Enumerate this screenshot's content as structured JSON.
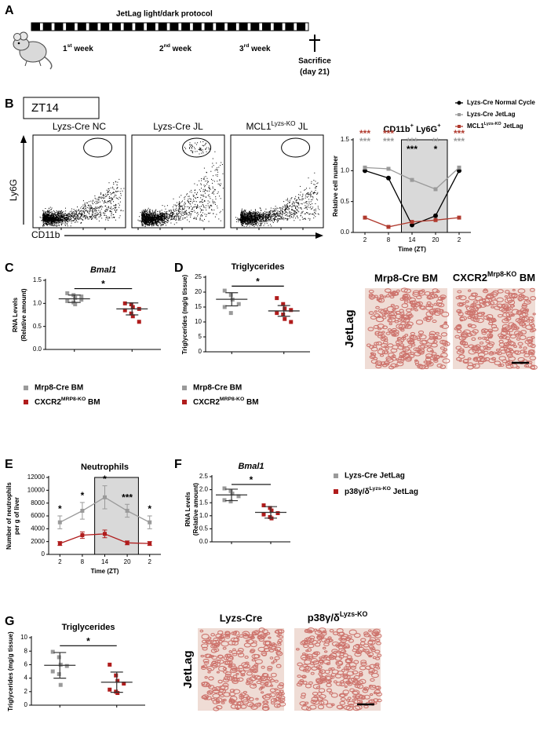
{
  "panel_labels": [
    "A",
    "B",
    "C",
    "D",
    "E",
    "F",
    "G"
  ],
  "protocol": {
    "title": "JetLag light/dark protocol",
    "weeks": [
      [
        "1",
        "st",
        " week"
      ],
      [
        "2",
        "nd",
        " week"
      ],
      [
        "3",
        "rd",
        " week"
      ]
    ],
    "endpoint": [
      "Sacrifice",
      "(day 21)"
    ]
  },
  "flow": {
    "timepoint": "ZT14",
    "plots": [
      "Lyzs-Cre NC",
      "Lyzs-Cre JL",
      [
        "MCL1",
        "Lyzs-KO",
        " JL"
      ]
    ],
    "y_axis": "Ly6G",
    "x_axis": "CD11b"
  },
  "histology_d": {
    "columns": [
      "Mrp8-Cre BM",
      [
        "CXCR2",
        "Mrp8-KO",
        " BM"
      ]
    ],
    "row": "JetLag"
  },
  "histology_g": {
    "columns": [
      "Lyzs-Cre",
      [
        "p38γ/δ",
        "Lyzs-KO"
      ]
    ],
    "row": "JetLag"
  },
  "chart_data": [
    {
      "type": "line",
      "title": [
        "CD11b",
        "+",
        " Ly6G",
        "+"
      ],
      "x_label": "Time (ZT)",
      "y_label": [
        "Relative cell number"
      ],
      "categories": [
        "2",
        "8",
        "14",
        "20",
        "2"
      ],
      "ylim": [
        0,
        1.5
      ],
      "yticks": [
        {
          "value": 0,
          "label": "0.0"
        },
        {
          "value": 0.5,
          "label": "0.5"
        },
        {
          "value": 1,
          "label": "1.0"
        },
        {
          "value": 1.5,
          "label": "1.5"
        }
      ],
      "series": [
        {
          "name": "Lyzs-Cre Normal Cycle",
          "color": "#000000",
          "marker": "circle",
          "values": [
            1.0,
            0.88,
            0.12,
            0.27,
            1.0
          ],
          "significance": [
            null,
            null,
            "***",
            "*",
            null
          ]
        },
        {
          "name": "Lyzs-Cre JetLag",
          "color": "#9a9a9a",
          "marker": "square",
          "values": [
            1.05,
            1.03,
            0.85,
            0.7,
            1.05
          ],
          "significance": [
            "***",
            "***",
            "***",
            "**",
            "***"
          ]
        },
        {
          "name": [
            "MCL1",
            "Lyzs-KO",
            " JetLag"
          ],
          "color": "#b03a2e",
          "marker": "square",
          "values": [
            0.24,
            0.09,
            0.17,
            0.2,
            0.24
          ],
          "significance": [
            "***",
            "***",
            null,
            null,
            "***"
          ]
        }
      ]
    },
    {
      "type": "dotplot",
      "title": "Bmal1",
      "italic_title": true,
      "y_label": [
        "RNA Levels",
        "(Relative amount)"
      ],
      "ylim": [
        0,
        1.5
      ],
      "yticks": [
        {
          "value": 0,
          "label": "0.0"
        },
        {
          "value": 0.5,
          "label": "0.5"
        },
        {
          "value": 1,
          "label": "1.0"
        },
        {
          "value": 1.5,
          "label": "1.5"
        }
      ],
      "significance": "*",
      "series": [
        {
          "name": "Mrp8-Cre BM",
          "color": "#9a9a9a",
          "values": [
            1.22,
            1.18,
            1.12,
            1.08,
            1.05,
            1.02,
            0.98,
            1.15
          ],
          "mean": 1.1,
          "sd": 0.08
        },
        {
          "name": [
            "CXCR2",
            "MRP8-KO",
            " BM"
          ],
          "color": "#b01c1c",
          "values": [
            1.0,
            0.98,
            0.92,
            0.88,
            0.85,
            0.78,
            0.72,
            0.6
          ],
          "mean": 0.88,
          "sd": 0.13
        }
      ]
    },
    {
      "type": "dotplot",
      "title": "Triglycerides",
      "y_label": [
        "Triglycerides (mg/g tissue)"
      ],
      "ylim": [
        0,
        25
      ],
      "yticks": [
        0,
        5,
        10,
        15,
        20,
        25
      ],
      "significance": "*",
      "series": [
        {
          "name": "Mrp8-Cre BM",
          "color": "#9a9a9a",
          "values": [
            20.5,
            19,
            17.5,
            16,
            15,
            13
          ],
          "mean": 17.6,
          "sd": 2.2
        },
        {
          "name": [
            "CXCR2",
            "MRP8-KO",
            " BM"
          ],
          "color": "#b01c1c",
          "values": [
            18,
            16,
            14.5,
            14,
            13,
            12.5,
            11,
            10
          ],
          "mean": 13.7,
          "sd": 1.8
        }
      ]
    },
    {
      "type": "line",
      "title": "Neutrophils",
      "x_label": "Time (ZT)",
      "y_label": [
        "Number of neutrophils",
        "per g of liver"
      ],
      "categories": [
        "2",
        "8",
        "14",
        "20",
        "2"
      ],
      "ylim": [
        0,
        12000
      ],
      "yticks": [
        0,
        2000,
        4000,
        6000,
        8000,
        10000,
        12000
      ],
      "significance": [
        "*",
        "*",
        "*",
        "***",
        "*"
      ],
      "series": [
        {
          "color": "#9a9a9a",
          "marker": "square",
          "values": [
            5000,
            6800,
            8900,
            6800,
            5000
          ],
          "errors": [
            1000,
            1300,
            1800,
            1000,
            1000
          ]
        },
        {
          "color": "#b01c1c",
          "marker": "square",
          "values": [
            1700,
            3000,
            3200,
            1800,
            1700
          ],
          "errors": [
            300,
            500,
            600,
            300,
            300
          ]
        }
      ]
    },
    {
      "type": "dotplot",
      "title": "Bmal1",
      "italic_title": true,
      "y_label": [
        "RNA Levels",
        "(Relative amount)"
      ],
      "ylim": [
        0,
        2.5
      ],
      "yticks": [
        {
          "value": 0,
          "label": "0.0"
        },
        {
          "value": 0.5,
          "label": "0.5"
        },
        {
          "value": 1,
          "label": "1.0"
        },
        {
          "value": 1.5,
          "label": "1.5"
        },
        {
          "value": 2,
          "label": "2.0"
        },
        {
          "value": 2.5,
          "label": "2.5"
        }
      ],
      "significance": "*",
      "series": [
        {
          "name": "Lyzs-Cre JetLag",
          "color": "#9a9a9a",
          "values": [
            2.05,
            1.95,
            1.85,
            1.75,
            1.6,
            1.55
          ],
          "mean": 1.8,
          "sd": 0.22
        },
        {
          "name": [
            "p38γ/δ",
            "Lyzs-KO",
            " JetLag"
          ],
          "color": "#b01c1c",
          "values": [
            1.4,
            1.3,
            1.2,
            1.1,
            1.05,
            0.95,
            0.9
          ],
          "mean": 1.13,
          "sd": 0.22
        }
      ]
    },
    {
      "type": "dotplot",
      "title": "Triglycerides",
      "y_label": [
        "Triglycerides (mg/g tissue)"
      ],
      "ylim": [
        0,
        10
      ],
      "yticks": [
        0,
        2,
        4,
        6,
        8,
        10
      ],
      "significance": "*",
      "series": [
        {
          "color": "#9a9a9a",
          "values": [
            7.9,
            7.1,
            6,
            5.8,
            5,
            4.6,
            3
          ],
          "mean": 5.9,
          "sd": 1.9
        },
        {
          "color": "#b01c1c",
          "values": [
            6,
            4.4,
            3.6,
            3.2,
            2.3,
            2,
            1.8
          ],
          "mean": 3.4,
          "sd": 1.5
        }
      ]
    }
  ]
}
